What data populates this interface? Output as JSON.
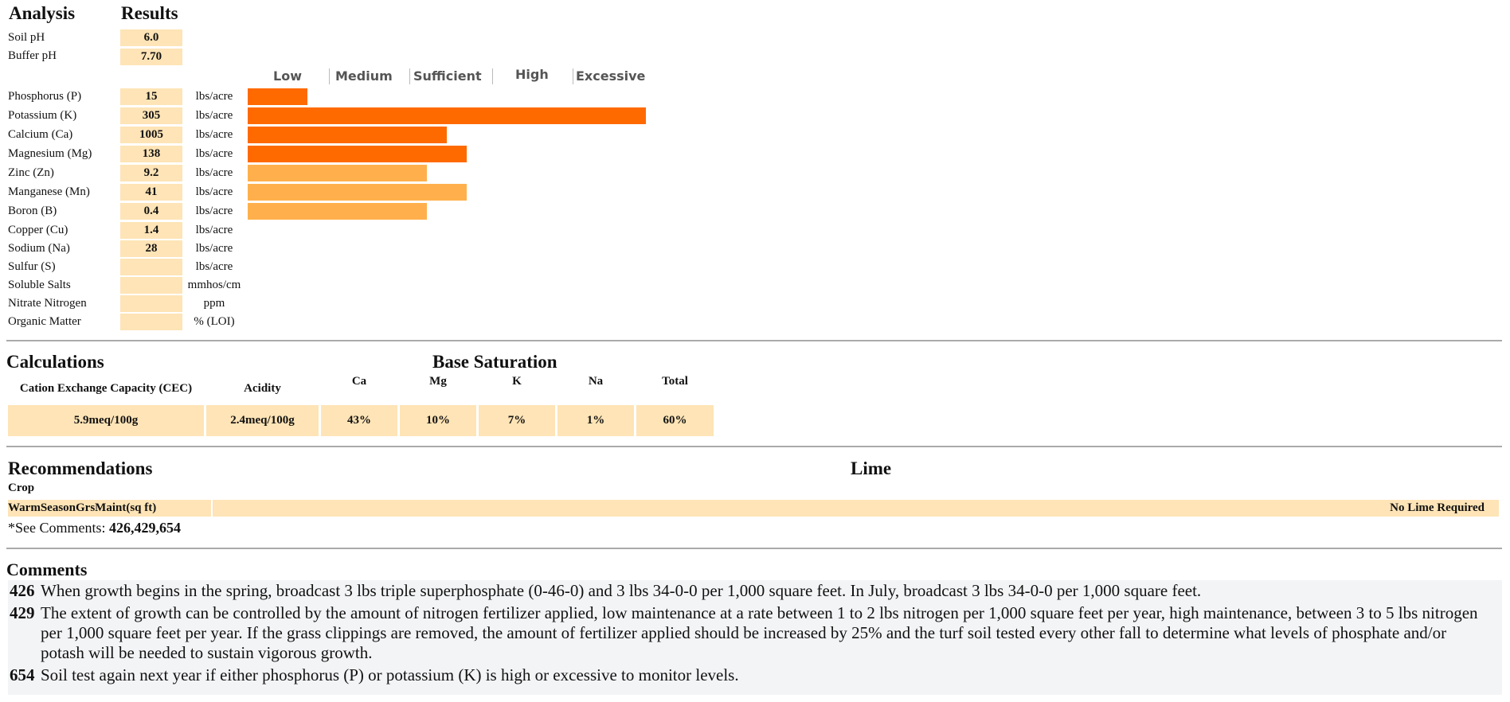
{
  "analysis": {
    "heading": "Analysis",
    "results_heading": "Results",
    "ph": [
      {
        "label": "Soil pH",
        "value": "6.0"
      },
      {
        "label": "Buffer pH",
        "value": "7.70"
      }
    ],
    "scale_labels": [
      "Low",
      "Medium",
      "Sufficient",
      "High",
      "Excessive"
    ],
    "colors": {
      "macro": "#ff6a00",
      "micro": "#ffb04c",
      "cell": "#fee4b6"
    },
    "nutrients": [
      {
        "label": "Phosphorus (P)",
        "value": "15",
        "unit": "lbs/acre",
        "bar_level_pct": 15,
        "bar_color": "macro"
      },
      {
        "label": "Potassium (K)",
        "value": "305",
        "unit": "lbs/acre",
        "bar_level_pct": 100,
        "bar_color": "macro"
      },
      {
        "label": "Calcium (Ca)",
        "value": "1005",
        "unit": "lbs/acre",
        "bar_level_pct": 50,
        "bar_color": "macro"
      },
      {
        "label": "Magnesium (Mg)",
        "value": "138",
        "unit": "lbs/acre",
        "bar_level_pct": 55,
        "bar_color": "macro"
      },
      {
        "label": "Zinc (Zn)",
        "value": "9.2",
        "unit": "lbs/acre",
        "bar_level_pct": 45,
        "bar_color": "micro"
      },
      {
        "label": "Manganese (Mn)",
        "value": "41",
        "unit": "lbs/acre",
        "bar_level_pct": 55,
        "bar_color": "micro"
      },
      {
        "label": "Boron (B)",
        "value": "0.4",
        "unit": "lbs/acre",
        "bar_level_pct": 45,
        "bar_color": "micro"
      },
      {
        "label": "Copper (Cu)",
        "value": "1.4",
        "unit": "lbs/acre"
      },
      {
        "label": "Sodium (Na)",
        "value": "28",
        "unit": "lbs/acre"
      },
      {
        "label": "Sulfur (S)",
        "value": "",
        "unit": "lbs/acre"
      },
      {
        "label": "Soluble Salts",
        "value": "",
        "unit": "mmhos/cm"
      },
      {
        "label": "Nitrate Nitrogen",
        "value": "",
        "unit": "ppm"
      },
      {
        "label": "Organic Matter",
        "value": "",
        "unit": "% (LOI)"
      }
    ]
  },
  "calculations": {
    "heading": "Calculations",
    "base_heading": "Base Saturation",
    "headers": [
      "Cation Exchange Capacity (CEC)",
      "Acidity",
      "Ca",
      "Mg",
      "K",
      "Na",
      "Total"
    ],
    "values": [
      "5.9meq/100g",
      "2.4meq/100g",
      "43%",
      "10%",
      "7%",
      "1%",
      "60%"
    ]
  },
  "recommendations": {
    "heading": "Recommendations",
    "lime_heading": "Lime",
    "crop_label": "Crop",
    "crop": "WarmSeasonGrsMaint(sq ft)",
    "lime": "No Lime Required",
    "see_comments_label": "*See Comments: ",
    "see_comments_codes": "426,429,654"
  },
  "comments": {
    "heading": "Comments",
    "items": [
      {
        "code": "426",
        "text": "When growth begins in the spring, broadcast 3 lbs triple superphosphate (0-46-0) and 3 lbs 34-0-0 per 1,000 square feet. In July, broadcast 3 lbs 34-0-0 per 1,000 square feet."
      },
      {
        "code": "429",
        "text": "The extent of growth can be controlled by the amount of nitrogen fertilizer applied, low maintenance at a rate between 1 to 2 lbs nitrogen per 1,000 square feet per year, high maintenance, between 3 to 5 lbs nitrogen per 1,000 square feet per year. If the grass clippings are removed, the amount of fertilizer applied should be increased by 25% and the turf soil tested every other fall to determine what levels of phosphate and/or potash will be needed to sustain vigorous growth."
      },
      {
        "code": "654",
        "text": "Soil test again next year if either phosphorus (P) or potassium (K) is high or excessive to monitor levels."
      }
    ]
  }
}
